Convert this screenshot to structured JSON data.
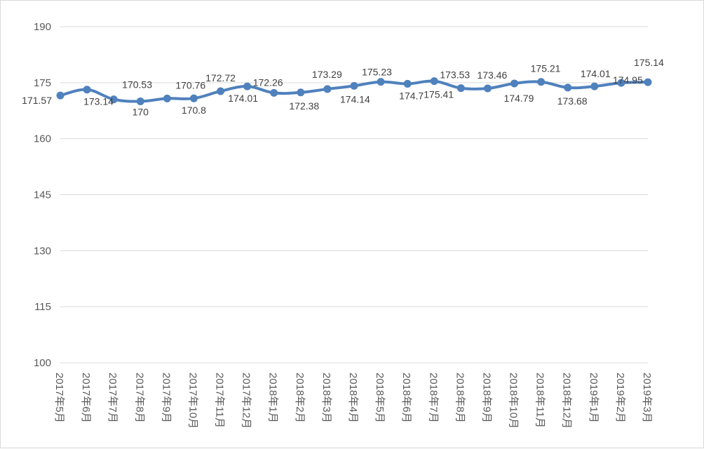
{
  "chart_data": {
    "type": "line",
    "title": "",
    "xlabel": "",
    "ylabel": "",
    "ylim": [
      100,
      190
    ],
    "yticks": [
      "100",
      "115",
      "130",
      "145",
      "160",
      "175",
      "190"
    ],
    "grid": true,
    "legend": "none",
    "color": "#4f81bd",
    "categories": [
      "2017年5月",
      "2017年6月",
      "2017年7月",
      "2017年8月",
      "2017年9月",
      "2017年10月",
      "2017年11月",
      "2017年12月",
      "2018年1月",
      "2018年2月",
      "2018年3月",
      "2018年4月",
      "2018年5月",
      "2018年6月",
      "2018年7月",
      "2018年8月",
      "2018年9月",
      "2018年10月",
      "2018年11月",
      "2018年12月",
      "2019年1月",
      "2019年2月",
      "2019年3月"
    ],
    "values": [
      171.57,
      173.14,
      170.53,
      170,
      170.76,
      170.8,
      172.72,
      174.01,
      172.26,
      172.38,
      173.29,
      174.14,
      175.23,
      174.7,
      175.41,
      173.53,
      173.46,
      174.79,
      175.21,
      173.68,
      174.01,
      174.95,
      175.14
    ],
    "labels": [
      "171.57",
      "173.14",
      "170.53",
      "170",
      "170.76",
      "170.8",
      "172.72",
      "174.01",
      "172.26",
      "172.38",
      "173.29",
      "174.14",
      "175.23",
      "174.7",
      "175.41",
      "173.53",
      "173.46",
      "174.79",
      "175.21",
      "173.68",
      "174.01",
      "174.95",
      "175.14"
    ]
  }
}
